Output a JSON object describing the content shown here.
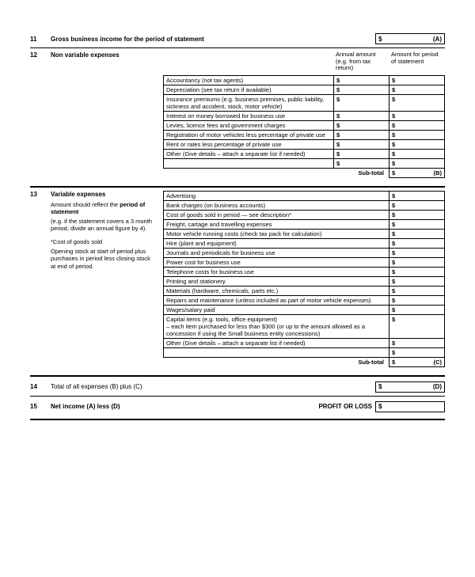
{
  "line11": {
    "num": "11",
    "label": "Gross business income for the period of statement",
    "dollar": "$",
    "letter": "(A)"
  },
  "line12": {
    "num": "12",
    "title": "Non variable expenses",
    "headers": {
      "col1": "Annual amount\n(e.g. from tax return)",
      "col2": "Amount for period\nof statement"
    },
    "rows": [
      "Accountancy (not tax agents)",
      "Depreciation (see tax return if available)",
      "Insurance premiums (e.g. business premises, public liability, sickness and accident, stock, motor vehicle)",
      "Interest on money borrowed for business use",
      "Levies, licence fees and government charges",
      "Registration of motor vehicles less percentage of private use",
      "Rent or rates less percentage of private use",
      "Other (Give details – attach a separate list if needed)",
      ""
    ],
    "subtotal_label": "Sub-total",
    "subtotal_letter": "(B)"
  },
  "line13": {
    "num": "13",
    "title": "Variable expenses",
    "note1": "Amount should reflect the",
    "note1b": "period of statement",
    "note2": "(e.g. if the statement covers a 3 month period, divide an annual figure by 4).",
    "note3_title": "*Cost of goods sold",
    "note3_body": "Opening stock at start of period plus purchases in period less closing stock at end of period.",
    "rows": [
      "Advertising",
      "Bank charges (on business accounts)",
      "Cost of goods sold in period — see description*",
      "Freight, cartage and travelling expenses",
      "Motor vehicle running costs (check tax pack for calculation)",
      "Hire (plant and equipment)",
      "Journals and periodicals for business use",
      "Power cost for business use",
      "Telephone costs for business use",
      "Printing and stationery",
      "Materials (hardware, chemicals, parts etc.)",
      "Repairs and maintenance (unless included as part of motor vehicle expenses)",
      "Wages/salary paid",
      "Capital items (e.g. tools, office equipment)\n– each item purchased for less than $300 (or up to the amount allowed as a concession if using the Small business entity concessions)",
      "Other (Give details – attach a separate list if needed)",
      ""
    ],
    "subtotal_label": "Sub-total",
    "subtotal_letter": "(C)"
  },
  "line14": {
    "num": "14",
    "label": "Total of all expenses (B) plus (C)",
    "dollar": "$",
    "letter": "(D)"
  },
  "line15": {
    "num": "15",
    "label": "Net income (A) less (D)",
    "pl": "PROFIT OR LOSS",
    "dollar": "$"
  }
}
